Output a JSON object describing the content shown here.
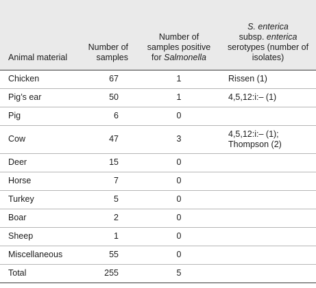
{
  "table": {
    "headers": {
      "material": "Animal material",
      "samples": "Number of samples",
      "positive_prefix": "Number of samples positive for",
      "positive_italic": "Salmonella",
      "serotypes_italic_1": "S. enterica",
      "serotypes_text_1": "subsp.",
      "serotypes_italic_2": "enterica",
      "serotypes_text_2": "serotypes (number of isolates)"
    },
    "rows": [
      {
        "material": "Chicken",
        "samples": "67",
        "positive": "1",
        "serotypes": "Rissen (1)"
      },
      {
        "material": "Pig’s ear",
        "samples": "50",
        "positive": "1",
        "serotypes": "4,5,12:i:– (1)"
      },
      {
        "material": "Pig",
        "samples": "6",
        "positive": "0",
        "serotypes": ""
      },
      {
        "material": "Cow",
        "samples": "47",
        "positive": "3",
        "serotypes": "4,5,12:i:– (1);",
        "serotypes_2": "Thompson (2)"
      },
      {
        "material": "Deer",
        "samples": "15",
        "positive": "0",
        "serotypes": ""
      },
      {
        "material": "Horse",
        "samples": "7",
        "positive": "0",
        "serotypes": ""
      },
      {
        "material": "Turkey",
        "samples": "5",
        "positive": "0",
        "serotypes": ""
      },
      {
        "material": "Boar",
        "samples": "2",
        "positive": "0",
        "serotypes": ""
      },
      {
        "material": "Sheep",
        "samples": "1",
        "positive": "0",
        "serotypes": ""
      },
      {
        "material": "Miscellaneous",
        "samples": "55",
        "positive": "0",
        "serotypes": ""
      },
      {
        "material": "Total",
        "samples": "255",
        "positive": "5",
        "serotypes": ""
      }
    ]
  }
}
